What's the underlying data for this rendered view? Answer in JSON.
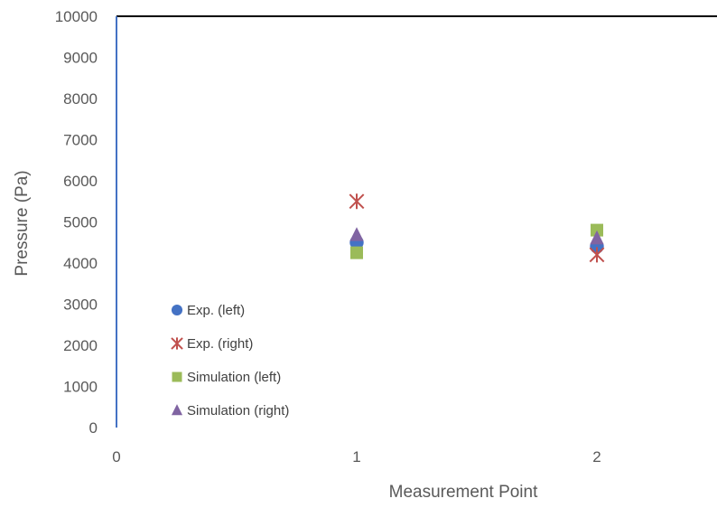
{
  "chart_data": {
    "type": "scatter",
    "title": "",
    "xlabel": "Measurement Point",
    "ylabel": "Pressure (Pa)",
    "xlim": [
      0,
      2.5
    ],
    "ylim": [
      0,
      10000
    ],
    "x_ticks": [
      "0",
      "1",
      "2"
    ],
    "y_ticks": [
      "0",
      "1000",
      "2000",
      "3000",
      "4000",
      "5000",
      "6000",
      "7000",
      "8000",
      "9000",
      "10000"
    ],
    "grid": false,
    "legend_position": "bottom-left inside",
    "series": [
      {
        "name": "Exp. (left)",
        "marker": "circle",
        "color": "#4472C4",
        "x": [
          1,
          2
        ],
        "y": [
          4500,
          4400
        ]
      },
      {
        "name": "Exp. (right)",
        "marker": "star",
        "color": "#C0504D",
        "x": [
          1,
          2
        ],
        "y": [
          5500,
          4200
        ]
      },
      {
        "name": "Simulation (left)",
        "marker": "square",
        "color": "#9BBB59",
        "x": [
          1,
          2
        ],
        "y": [
          4250,
          4800
        ]
      },
      {
        "name": "Simulation (right)",
        "marker": "triangle",
        "color": "#8064A2",
        "x": [
          1,
          2
        ],
        "y": [
          4680,
          4600
        ]
      }
    ]
  }
}
